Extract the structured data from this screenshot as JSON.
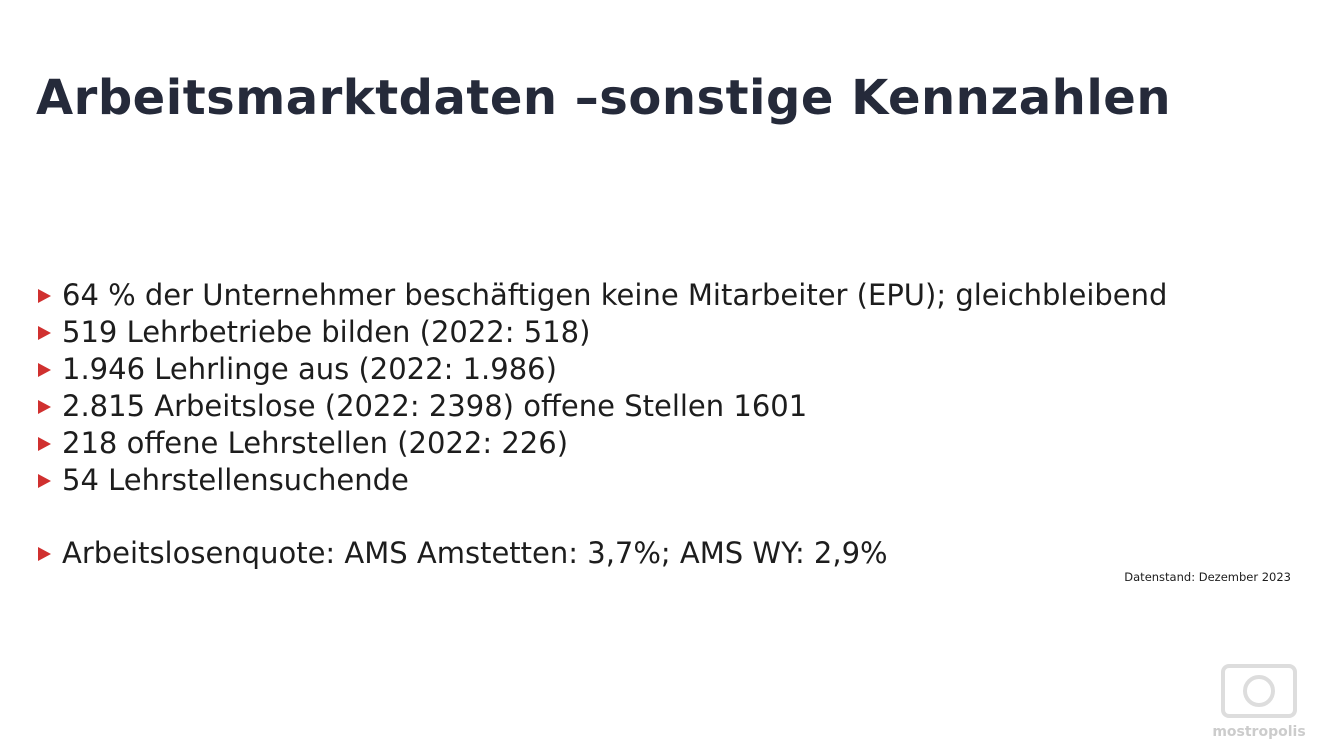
{
  "header": {
    "title": "Arbeitsmarktdaten –sonstige Kennzahlen"
  },
  "bullets": [
    "64 % der Unternehmer beschäftigen keine Mitarbeiter (EPU); gleichbleibend",
    "519 Lehrbetriebe bilden (2022: 518)",
    "1.946 Lehrlinge aus (2022: 1.986)",
    "2.815 Arbeitslose (2022: 2398) offene Stellen 1601",
    "218 offene Lehrstellen (2022: 226)",
    "54 Lehrstellensuchende"
  ],
  "extra_bullet": "Arbeitslosenquote: AMS Amstetten: 3,7%; AMS WY: 2,9%",
  "footnote": "Datenstand: Dezember 2023",
  "watermark": "mostropolis"
}
